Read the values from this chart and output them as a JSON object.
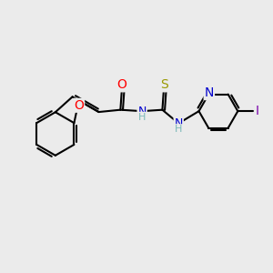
{
  "bg_color": "#ebebeb",
  "bond_color": "#000000",
  "atom_colors": {
    "O": "#ff0000",
    "N": "#0000cc",
    "S": "#999900",
    "I": "#7700aa",
    "C": "#000000",
    "H": "#7ab8b8"
  },
  "font_size": 9,
  "figsize": [
    3.0,
    3.0
  ],
  "dpi": 100
}
